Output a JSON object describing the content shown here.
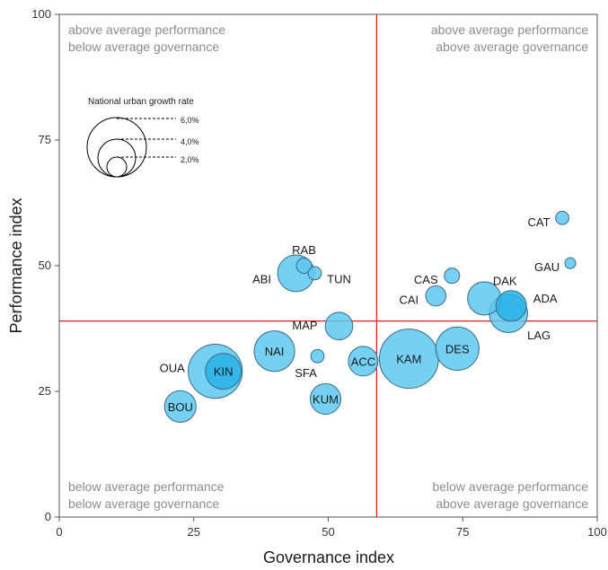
{
  "chart_data": {
    "type": "scatter",
    "xlabel": "Governance index",
    "ylabel": "Performance index",
    "xlim": [
      0,
      100
    ],
    "ylim": [
      0,
      100
    ],
    "x_ticks": [
      "0",
      "25",
      "50",
      "75",
      "100"
    ],
    "y_ticks": [
      "0",
      "25",
      "50",
      "75",
      "100"
    ],
    "grid": false,
    "reference_lines": {
      "x": 59,
      "y": 39
    },
    "quadrant_labels": {
      "top_left": [
        "above average performance",
        "below average governance"
      ],
      "top_right": [
        "above average performance",
        "above average governance"
      ],
      "bottom_left": [
        "below average performance",
        "below average governance"
      ],
      "bottom_right": [
        "below average performance",
        "above average governance"
      ]
    },
    "size_legend": {
      "title": "National urban growth rate",
      "entries": [
        {
          "label": "6,0%",
          "value": 6.0
        },
        {
          "label": "4,0%",
          "value": 4.0
        },
        {
          "label": "2,0%",
          "value": 2.0
        }
      ]
    },
    "points": [
      {
        "label": "CAT",
        "x": 93.5,
        "y": 59.5,
        "size": 0.3
      },
      {
        "label": "GAU",
        "x": 95.0,
        "y": 50.5,
        "size": 0.2
      },
      {
        "label": "RAB",
        "x": 45.5,
        "y": 50.0,
        "size": 0.4
      },
      {
        "label": "ABI",
        "x": 44.0,
        "y": 48.5,
        "size": 2.3
      },
      {
        "label": "TUN",
        "x": 47.5,
        "y": 48.5,
        "size": 0.3
      },
      {
        "label": "CAS",
        "x": 73.0,
        "y": 48.0,
        "size": 0.4
      },
      {
        "label": "CAI",
        "x": 70.0,
        "y": 44.0,
        "size": 0.7
      },
      {
        "label": "DAK",
        "x": 79.0,
        "y": 43.5,
        "size": 1.9
      },
      {
        "label": "ADA",
        "x": 84.0,
        "y": 42.0,
        "size": 1.6
      },
      {
        "label": "LAG",
        "x": 83.5,
        "y": 40.5,
        "size": 2.5
      },
      {
        "label": "MAP",
        "x": 52.0,
        "y": 38.0,
        "size": 1.3
      },
      {
        "label": "NAI",
        "x": 40.0,
        "y": 33.0,
        "size": 2.8
      },
      {
        "label": "SFA",
        "x": 48.0,
        "y": 32.0,
        "size": 0.3
      },
      {
        "label": "ACC",
        "x": 56.5,
        "y": 31.0,
        "size": 1.5
      },
      {
        "label": "KAM",
        "x": 65.0,
        "y": 31.5,
        "size": 6.0
      },
      {
        "label": "DES",
        "x": 74.0,
        "y": 33.5,
        "size": 3.2
      },
      {
        "label": "OUA",
        "x": 29.0,
        "y": 29.0,
        "size": 5.0
      },
      {
        "label": "KIN",
        "x": 30.5,
        "y": 29.0,
        "size": 2.2
      },
      {
        "label": "KUM",
        "x": 49.5,
        "y": 23.5,
        "size": 1.6
      },
      {
        "label": "BOU",
        "x": 22.5,
        "y": 22.0,
        "size": 1.7
      }
    ]
  },
  "colors": {
    "bubble_fill": "#5ec8f0",
    "bubble_fill_dark": "#29b1e8",
    "bubble_stroke": "#3a6b85",
    "reference_line": "#d42020",
    "quadrant_text": "#8c8c8c"
  }
}
